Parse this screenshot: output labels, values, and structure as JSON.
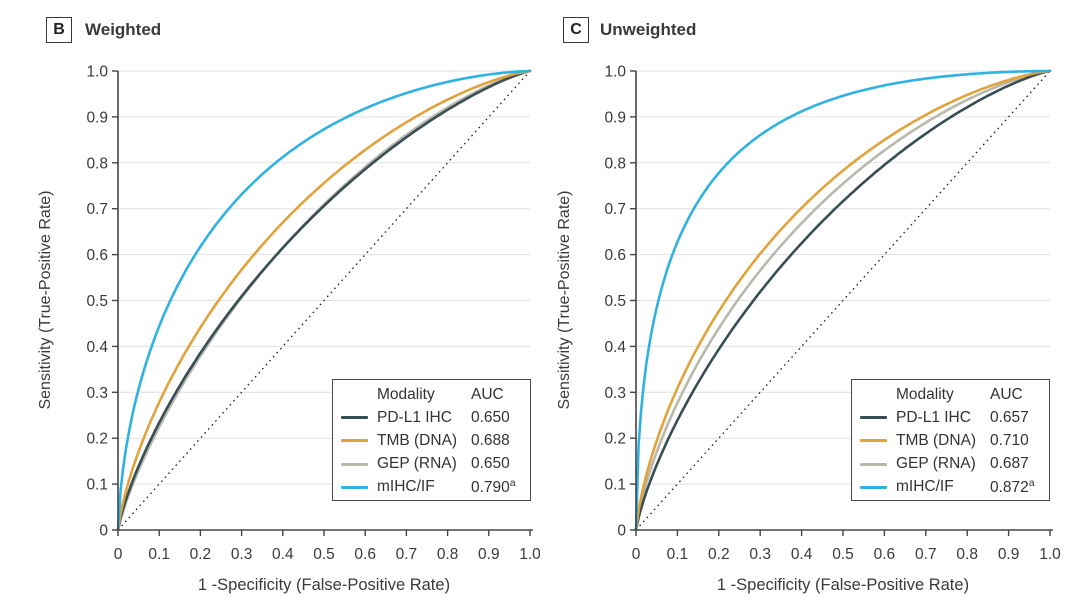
{
  "chart_data": [
    {
      "type": "line",
      "panel_label": "B",
      "title": "Weighted",
      "xlabel": "1 -Specificity (False-Positive Rate)",
      "ylabel": "Sensitivity (True-Positive Rate)",
      "xlim": [
        0,
        1
      ],
      "ylim": [
        0,
        1
      ],
      "xticks": [
        "0",
        "0.1",
        "0.2",
        "0.3",
        "0.4",
        "0.5",
        "0.6",
        "0.7",
        "0.8",
        "0.9",
        "1.0"
      ],
      "yticks": [
        "0",
        "0.1",
        "0.2",
        "0.3",
        "0.4",
        "0.5",
        "0.6",
        "0.7",
        "0.8",
        "0.9",
        "1.0"
      ],
      "grid": "horizontal",
      "reference_diagonal": true,
      "curve_model": "binormal",
      "legend": {
        "position": "bottom-right",
        "headers": [
          "Modality",
          "AUC"
        ]
      },
      "series": [
        {
          "name": "PD-L1 IHC",
          "auc": 0.65,
          "auc_display": "0.650",
          "color": "#374E55",
          "slope": 0.99
        },
        {
          "name": "TMB (DNA)",
          "auc": 0.688,
          "auc_display": "0.688",
          "color": "#E2A23C",
          "slope": 1.0
        },
        {
          "name": "GEP (RNA)",
          "auc": 0.65,
          "auc_display": "0.650",
          "color": "#B8B8AC",
          "slope": 1.02
        },
        {
          "name": "mIHC/IF",
          "auc": 0.79,
          "auc_display": "0.790",
          "auc_superscript": "a",
          "color": "#2FB2E2",
          "slope": 1.0
        }
      ]
    },
    {
      "type": "line",
      "panel_label": "C",
      "title": "Unweighted",
      "xlabel": "1 -Specificity (False-Positive Rate)",
      "ylabel": "Sensitivity (True-Positive Rate)",
      "xlim": [
        0,
        1
      ],
      "ylim": [
        0,
        1
      ],
      "xticks": [
        "0",
        "0.1",
        "0.2",
        "0.3",
        "0.4",
        "0.5",
        "0.6",
        "0.7",
        "0.8",
        "0.9",
        "1.0"
      ],
      "yticks": [
        "0",
        "0.1",
        "0.2",
        "0.3",
        "0.4",
        "0.5",
        "0.6",
        "0.7",
        "0.8",
        "0.9",
        "1.0"
      ],
      "grid": "horizontal",
      "reference_diagonal": true,
      "curve_model": "binormal",
      "legend": {
        "position": "bottom-right",
        "headers": [
          "Modality",
          "AUC"
        ]
      },
      "series": [
        {
          "name": "PD-L1 IHC",
          "auc": 0.657,
          "auc_display": "0.657",
          "color": "#374E55",
          "slope": 1.0
        },
        {
          "name": "TMB (DNA)",
          "auc": 0.71,
          "auc_display": "0.710",
          "color": "#E2A23C",
          "slope": 1.0
        },
        {
          "name": "GEP (RNA)",
          "auc": 0.687,
          "auc_display": "0.687",
          "color": "#B8B8AC",
          "slope": 1.0
        },
        {
          "name": "mIHC/IF",
          "auc": 0.872,
          "auc_display": "0.872",
          "auc_superscript": "a",
          "color": "#2FB2E2",
          "slope": 1.0
        }
      ]
    }
  ]
}
